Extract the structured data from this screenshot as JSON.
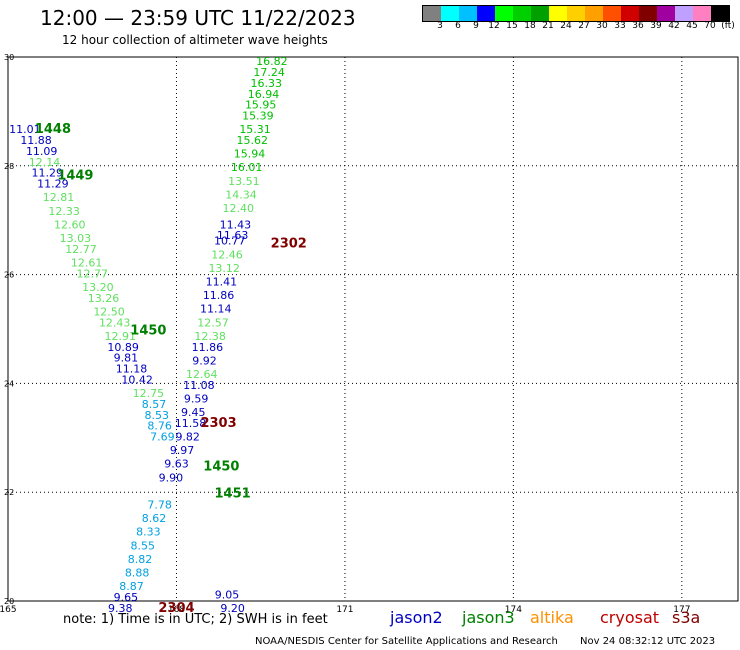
{
  "header": {
    "title": "12:00 — 23:59 UTC 11/22/2023",
    "subtitle": "12 hour collection of altimeter wave heights"
  },
  "colorbar": {
    "colors": [
      "#808080",
      "#00ffff",
      "#00c0ff",
      "#0000ff",
      "#00ff00",
      "#00d000",
      "#00a000",
      "#ffff00",
      "#ffd000",
      "#ffa000",
      "#ff5000",
      "#d00000",
      "#800000",
      "#a000a0",
      "#c0a0ff",
      "#ff80c0",
      "#000000"
    ],
    "ticks": [
      "3",
      "6",
      "9",
      "12",
      "15",
      "18",
      "21",
      "24",
      "27",
      "30",
      "33",
      "36",
      "39",
      "42",
      "45",
      "70",
      "(ft)"
    ]
  },
  "axes": {
    "x_ticks": [
      "165",
      "168",
      "171",
      "174",
      "177"
    ],
    "y_ticks": [
      "20",
      "22",
      "24",
      "26",
      "28",
      "30"
    ]
  },
  "chart_data": {
    "type": "scatter",
    "xlim": [
      165,
      178
    ],
    "ylim": [
      20,
      30
    ],
    "x_ticks": [
      165,
      168,
      171,
      174,
      177
    ],
    "y_ticks": [
      20,
      22,
      24,
      26,
      28,
      30
    ],
    "grid": true,
    "points": [
      {
        "x": 169.7,
        "y": 29.85,
        "label": "16.82",
        "color": "#00c000"
      },
      {
        "x": 169.65,
        "y": 29.65,
        "label": "17.24",
        "color": "#00c000"
      },
      {
        "x": 169.6,
        "y": 29.45,
        "label": "16.33",
        "color": "#00c000"
      },
      {
        "x": 169.55,
        "y": 29.25,
        "label": "16.94",
        "color": "#00c000"
      },
      {
        "x": 169.5,
        "y": 29.05,
        "label": "15.95",
        "color": "#00c000"
      },
      {
        "x": 169.45,
        "y": 28.85,
        "label": "15.39",
        "color": "#00c000"
      },
      {
        "x": 169.4,
        "y": 28.6,
        "label": "15.31",
        "color": "#00c000"
      },
      {
        "x": 169.35,
        "y": 28.4,
        "label": "15.62",
        "color": "#00c000"
      },
      {
        "x": 169.3,
        "y": 28.15,
        "label": "15.94",
        "color": "#00c000"
      },
      {
        "x": 169.25,
        "y": 27.9,
        "label": "16.01",
        "color": "#00c000"
      },
      {
        "x": 169.2,
        "y": 27.65,
        "label": "13.51",
        "color": "#60e060"
      },
      {
        "x": 169.15,
        "y": 27.4,
        "label": "14.34",
        "color": "#60e060"
      },
      {
        "x": 169.1,
        "y": 27.15,
        "label": "12.40",
        "color": "#60e060"
      },
      {
        "x": 169.05,
        "y": 26.85,
        "label": "11.43",
        "color": "#0000c0"
      },
      {
        "x": 169.0,
        "y": 26.65,
        "label": "11.63",
        "color": "#0000c0"
      },
      {
        "x": 168.95,
        "y": 26.55,
        "label": "10.77",
        "color": "#0000c0"
      },
      {
        "x": 168.9,
        "y": 26.3,
        "label": "12.46",
        "color": "#60e060"
      },
      {
        "x": 168.85,
        "y": 26.05,
        "label": "13.12",
        "color": "#60e060"
      },
      {
        "x": 168.8,
        "y": 25.8,
        "label": "11.41",
        "color": "#0000c0"
      },
      {
        "x": 168.75,
        "y": 25.55,
        "label": "11.86",
        "color": "#0000c0"
      },
      {
        "x": 168.7,
        "y": 25.3,
        "label": "11.14",
        "color": "#0000c0"
      },
      {
        "x": 168.65,
        "y": 25.05,
        "label": "12.57",
        "color": "#60e060"
      },
      {
        "x": 168.6,
        "y": 24.8,
        "label": "12.38",
        "color": "#60e060"
      },
      {
        "x": 168.55,
        "y": 24.6,
        "label": "11.86",
        "color": "#0000c0"
      },
      {
        "x": 168.5,
        "y": 24.35,
        "label": "9.92",
        "color": "#0000c0"
      },
      {
        "x": 168.45,
        "y": 24.1,
        "label": "12.64",
        "color": "#60e060"
      },
      {
        "x": 168.4,
        "y": 23.9,
        "label": "11.08",
        "color": "#0000c0"
      },
      {
        "x": 168.35,
        "y": 23.65,
        "label": "9.59",
        "color": "#0000c0"
      },
      {
        "x": 168.3,
        "y": 23.4,
        "label": "9.45",
        "color": "#0000c0"
      },
      {
        "x": 168.25,
        "y": 23.2,
        "label": "11.58",
        "color": "#0000c0"
      },
      {
        "x": 168.2,
        "y": 22.95,
        "label": "9.82",
        "color": "#0000c0"
      },
      {
        "x": 168.1,
        "y": 22.7,
        "label": "9.97",
        "color": "#0000c0"
      },
      {
        "x": 168.0,
        "y": 22.45,
        "label": "9.63",
        "color": "#0000c0"
      },
      {
        "x": 167.9,
        "y": 22.2,
        "label": "9.90",
        "color": "#0000c0"
      },
      {
        "x": 165.3,
        "y": 28.6,
        "label": "11.01",
        "color": "#0000c0"
      },
      {
        "x": 165.5,
        "y": 28.4,
        "label": "11.88",
        "color": "#0000c0"
      },
      {
        "x": 165.6,
        "y": 28.2,
        "label": "11.09",
        "color": "#0000c0"
      },
      {
        "x": 165.65,
        "y": 28.0,
        "label": "12.14",
        "color": "#60e060"
      },
      {
        "x": 165.7,
        "y": 27.8,
        "label": "11.29",
        "color": "#0000c0"
      },
      {
        "x": 165.8,
        "y": 27.6,
        "label": "11.29",
        "color": "#0000c0"
      },
      {
        "x": 165.9,
        "y": 27.35,
        "label": "12.81",
        "color": "#60e060"
      },
      {
        "x": 166.0,
        "y": 27.1,
        "label": "12.33",
        "color": "#60e060"
      },
      {
        "x": 166.1,
        "y": 26.85,
        "label": "12.60",
        "color": "#60e060"
      },
      {
        "x": 166.2,
        "y": 26.6,
        "label": "13.03",
        "color": "#60e060"
      },
      {
        "x": 166.3,
        "y": 26.4,
        "label": "12.77",
        "color": "#60e060"
      },
      {
        "x": 166.4,
        "y": 26.15,
        "label": "12.61",
        "color": "#60e060"
      },
      {
        "x": 166.5,
        "y": 25.95,
        "label": "12.77",
        "color": "#60e060"
      },
      {
        "x": 166.6,
        "y": 25.7,
        "label": "13.20",
        "color": "#60e060"
      },
      {
        "x": 166.7,
        "y": 25.5,
        "label": "13.26",
        "color": "#60e060"
      },
      {
        "x": 166.8,
        "y": 25.25,
        "label": "12.50",
        "color": "#60e060"
      },
      {
        "x": 166.9,
        "y": 25.05,
        "label": "12.43",
        "color": "#60e060"
      },
      {
        "x": 167.0,
        "y": 24.8,
        "label": "12.91",
        "color": "#60e060"
      },
      {
        "x": 167.05,
        "y": 24.6,
        "label": "10.89",
        "color": "#0000c0"
      },
      {
        "x": 167.1,
        "y": 24.4,
        "label": "9.81",
        "color": "#0000c0"
      },
      {
        "x": 167.2,
        "y": 24.2,
        "label": "11.18",
        "color": "#0000c0"
      },
      {
        "x": 167.3,
        "y": 24.0,
        "label": "10.42",
        "color": "#0000c0"
      },
      {
        "x": 167.5,
        "y": 23.75,
        "label": "12.75",
        "color": "#60e060"
      },
      {
        "x": 167.6,
        "y": 23.55,
        "label": "8.57",
        "color": "#00a0e0"
      },
      {
        "x": 167.65,
        "y": 23.35,
        "label": "8.53",
        "color": "#00a0e0"
      },
      {
        "x": 167.7,
        "y": 23.15,
        "label": "8.76",
        "color": "#00a0e0"
      },
      {
        "x": 167.75,
        "y": 22.95,
        "label": "7.69",
        "color": "#00a0e0"
      },
      {
        "x": 167.7,
        "y": 21.7,
        "label": "7.78",
        "color": "#00a0e0"
      },
      {
        "x": 167.6,
        "y": 21.45,
        "label": "8.62",
        "color": "#00a0e0"
      },
      {
        "x": 167.5,
        "y": 21.2,
        "label": "8.33",
        "color": "#00a0e0"
      },
      {
        "x": 167.4,
        "y": 20.95,
        "label": "8.55",
        "color": "#00a0e0"
      },
      {
        "x": 167.35,
        "y": 20.7,
        "label": "8.82",
        "color": "#00a0e0"
      },
      {
        "x": 167.3,
        "y": 20.45,
        "label": "8.88",
        "color": "#00a0e0"
      },
      {
        "x": 167.2,
        "y": 20.2,
        "label": "8.87",
        "color": "#00a0e0"
      },
      {
        "x": 167.1,
        "y": 20.0,
        "label": "9.65",
        "color": "#0000c0"
      },
      {
        "x": 167.0,
        "y": 19.8,
        "label": "9.38",
        "color": "#0000c0"
      },
      {
        "x": 168.9,
        "y": 20.05,
        "label": "9.05",
        "color": "#0000c0"
      },
      {
        "x": 169.0,
        "y": 19.8,
        "label": "9.20",
        "color": "#0000c0"
      }
    ],
    "track_labels": [
      {
        "x": 165.8,
        "y": 28.6,
        "label": "1448",
        "color": "#008000"
      },
      {
        "x": 166.2,
        "y": 27.75,
        "label": "1449",
        "color": "#008000"
      },
      {
        "x": 167.5,
        "y": 24.9,
        "label": "1450",
        "color": "#008000"
      },
      {
        "x": 170.0,
        "y": 26.5,
        "label": "2302",
        "color": "#800000"
      },
      {
        "x": 168.75,
        "y": 23.2,
        "label": "2303",
        "color": "#800000"
      },
      {
        "x": 168.8,
        "y": 22.4,
        "label": "1450",
        "color": "#008000"
      },
      {
        "x": 169.0,
        "y": 21.9,
        "label": "1451",
        "color": "#008000"
      },
      {
        "x": 168.0,
        "y": 19.8,
        "label": "2304",
        "color": "#800000"
      }
    ]
  },
  "note": "note: 1) Time is in UTC; 2) SWH is in feet",
  "legend": [
    {
      "label": "jason2",
      "color": "#0000c0"
    },
    {
      "label": "jason3",
      "color": "#008000"
    },
    {
      "label": "altika",
      "color": "#ff9000"
    },
    {
      "label": "cryosat",
      "color": "#c00000"
    },
    {
      "label": "s3a",
      "color": "#800000"
    }
  ],
  "footer": {
    "credit": "NOAA/NESDIS Center for Satellite Applications and Research",
    "timestamp": "Nov 24 08:32:12 UTC 2023"
  }
}
